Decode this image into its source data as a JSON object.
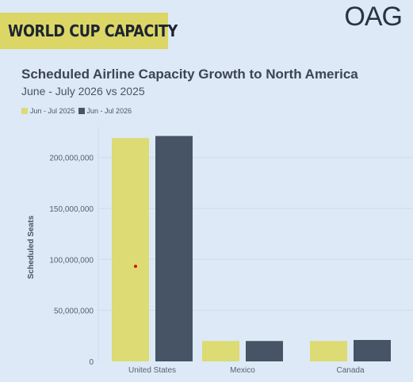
{
  "banner": {
    "text": "WORLD CUP CAPACITY"
  },
  "logo": {
    "text": "OAG"
  },
  "colors": {
    "background": "#dde9f6",
    "banner": "#dbd666",
    "series_2025": "#dcdb74",
    "series_2026": "#475466"
  },
  "chart_data": {
    "type": "bar",
    "title": "Scheduled Airline Capacity Growth to North America",
    "subtitle": "June - July 2026 vs 2025",
    "ylabel": "Scheduled Seats",
    "xlabel": "",
    "categories": [
      "United States",
      "Mexico",
      "Canada"
    ],
    "series": [
      {
        "name": "Jun - Jul 2025",
        "color": "#dcdb74",
        "values": [
          219000000,
          20000000,
          20000000
        ]
      },
      {
        "name": "Jun - Jul 2026",
        "color": "#475466",
        "values": [
          221000000,
          20000000,
          21000000
        ]
      }
    ],
    "ylim": [
      0,
      230000000
    ],
    "yticks": [
      0,
      50000000,
      100000000,
      150000000,
      200000000
    ],
    "ytick_labels": [
      "0",
      "50,000,000",
      "100,000,000",
      "150,000,000",
      "200,000,000"
    ],
    "grid": true,
    "legend_position": "top-left"
  }
}
